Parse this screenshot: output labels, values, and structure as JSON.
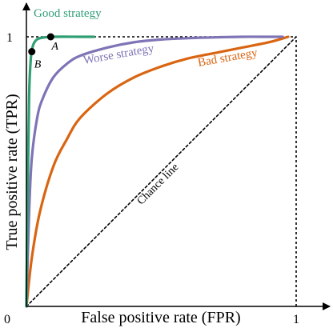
{
  "chart_data": {
    "type": "line",
    "xlabel": "False positive rate (FPR)",
    "ylabel": "True positive rate (TPR)",
    "xlim": [
      0,
      1
    ],
    "ylim": [
      0,
      1
    ],
    "tick_labels": {
      "origin": "0",
      "x_one": "1",
      "y_one": "1"
    },
    "grid": false,
    "series": [
      {
        "name": "Good strategy",
        "color": "#2f9e73",
        "x": [
          0,
          0.005,
          0.01,
          0.015,
          0.02,
          0.03,
          0.05,
          0.1,
          0.2,
          0.25
        ],
        "y": [
          0,
          0.45,
          0.78,
          0.9,
          0.95,
          0.98,
          0.995,
          1.0,
          1.0,
          1.0
        ]
      },
      {
        "name": "Worse strategy",
        "color": "#7f74b6",
        "x": [
          0,
          0.01,
          0.02,
          0.04,
          0.06,
          0.1,
          0.15,
          0.2,
          0.3,
          0.4,
          0.5,
          0.6,
          0.7,
          0.8,
          0.9,
          0.95
        ],
        "y": [
          0,
          0.35,
          0.55,
          0.7,
          0.77,
          0.85,
          0.9,
          0.93,
          0.96,
          0.98,
          0.99,
          0.995,
          0.998,
          1.0,
          1.0,
          1.0
        ]
      },
      {
        "name": "Bad strategy",
        "color": "#d96512",
        "x": [
          0,
          0.02,
          0.05,
          0.1,
          0.15,
          0.2,
          0.3,
          0.4,
          0.5,
          0.6,
          0.7,
          0.8,
          0.9,
          0.97
        ],
        "y": [
          0,
          0.18,
          0.35,
          0.52,
          0.62,
          0.7,
          0.79,
          0.85,
          0.89,
          0.92,
          0.94,
          0.96,
          0.98,
          1.0
        ]
      },
      {
        "name": "Chance line",
        "color": "#000000",
        "dashed": true,
        "x": [
          0,
          1
        ],
        "y": [
          0,
          1
        ]
      }
    ],
    "points": [
      {
        "label": "A",
        "x": 0.09,
        "y": 1.0
      },
      {
        "label": "B",
        "x": 0.02,
        "y": 0.945
      }
    ],
    "reference_lines": {
      "top": {
        "y": 1,
        "x": [
          0,
          1
        ],
        "dashed": true
      },
      "right": {
        "x": 1,
        "y": [
          0,
          1
        ],
        "dashed": true
      }
    }
  }
}
